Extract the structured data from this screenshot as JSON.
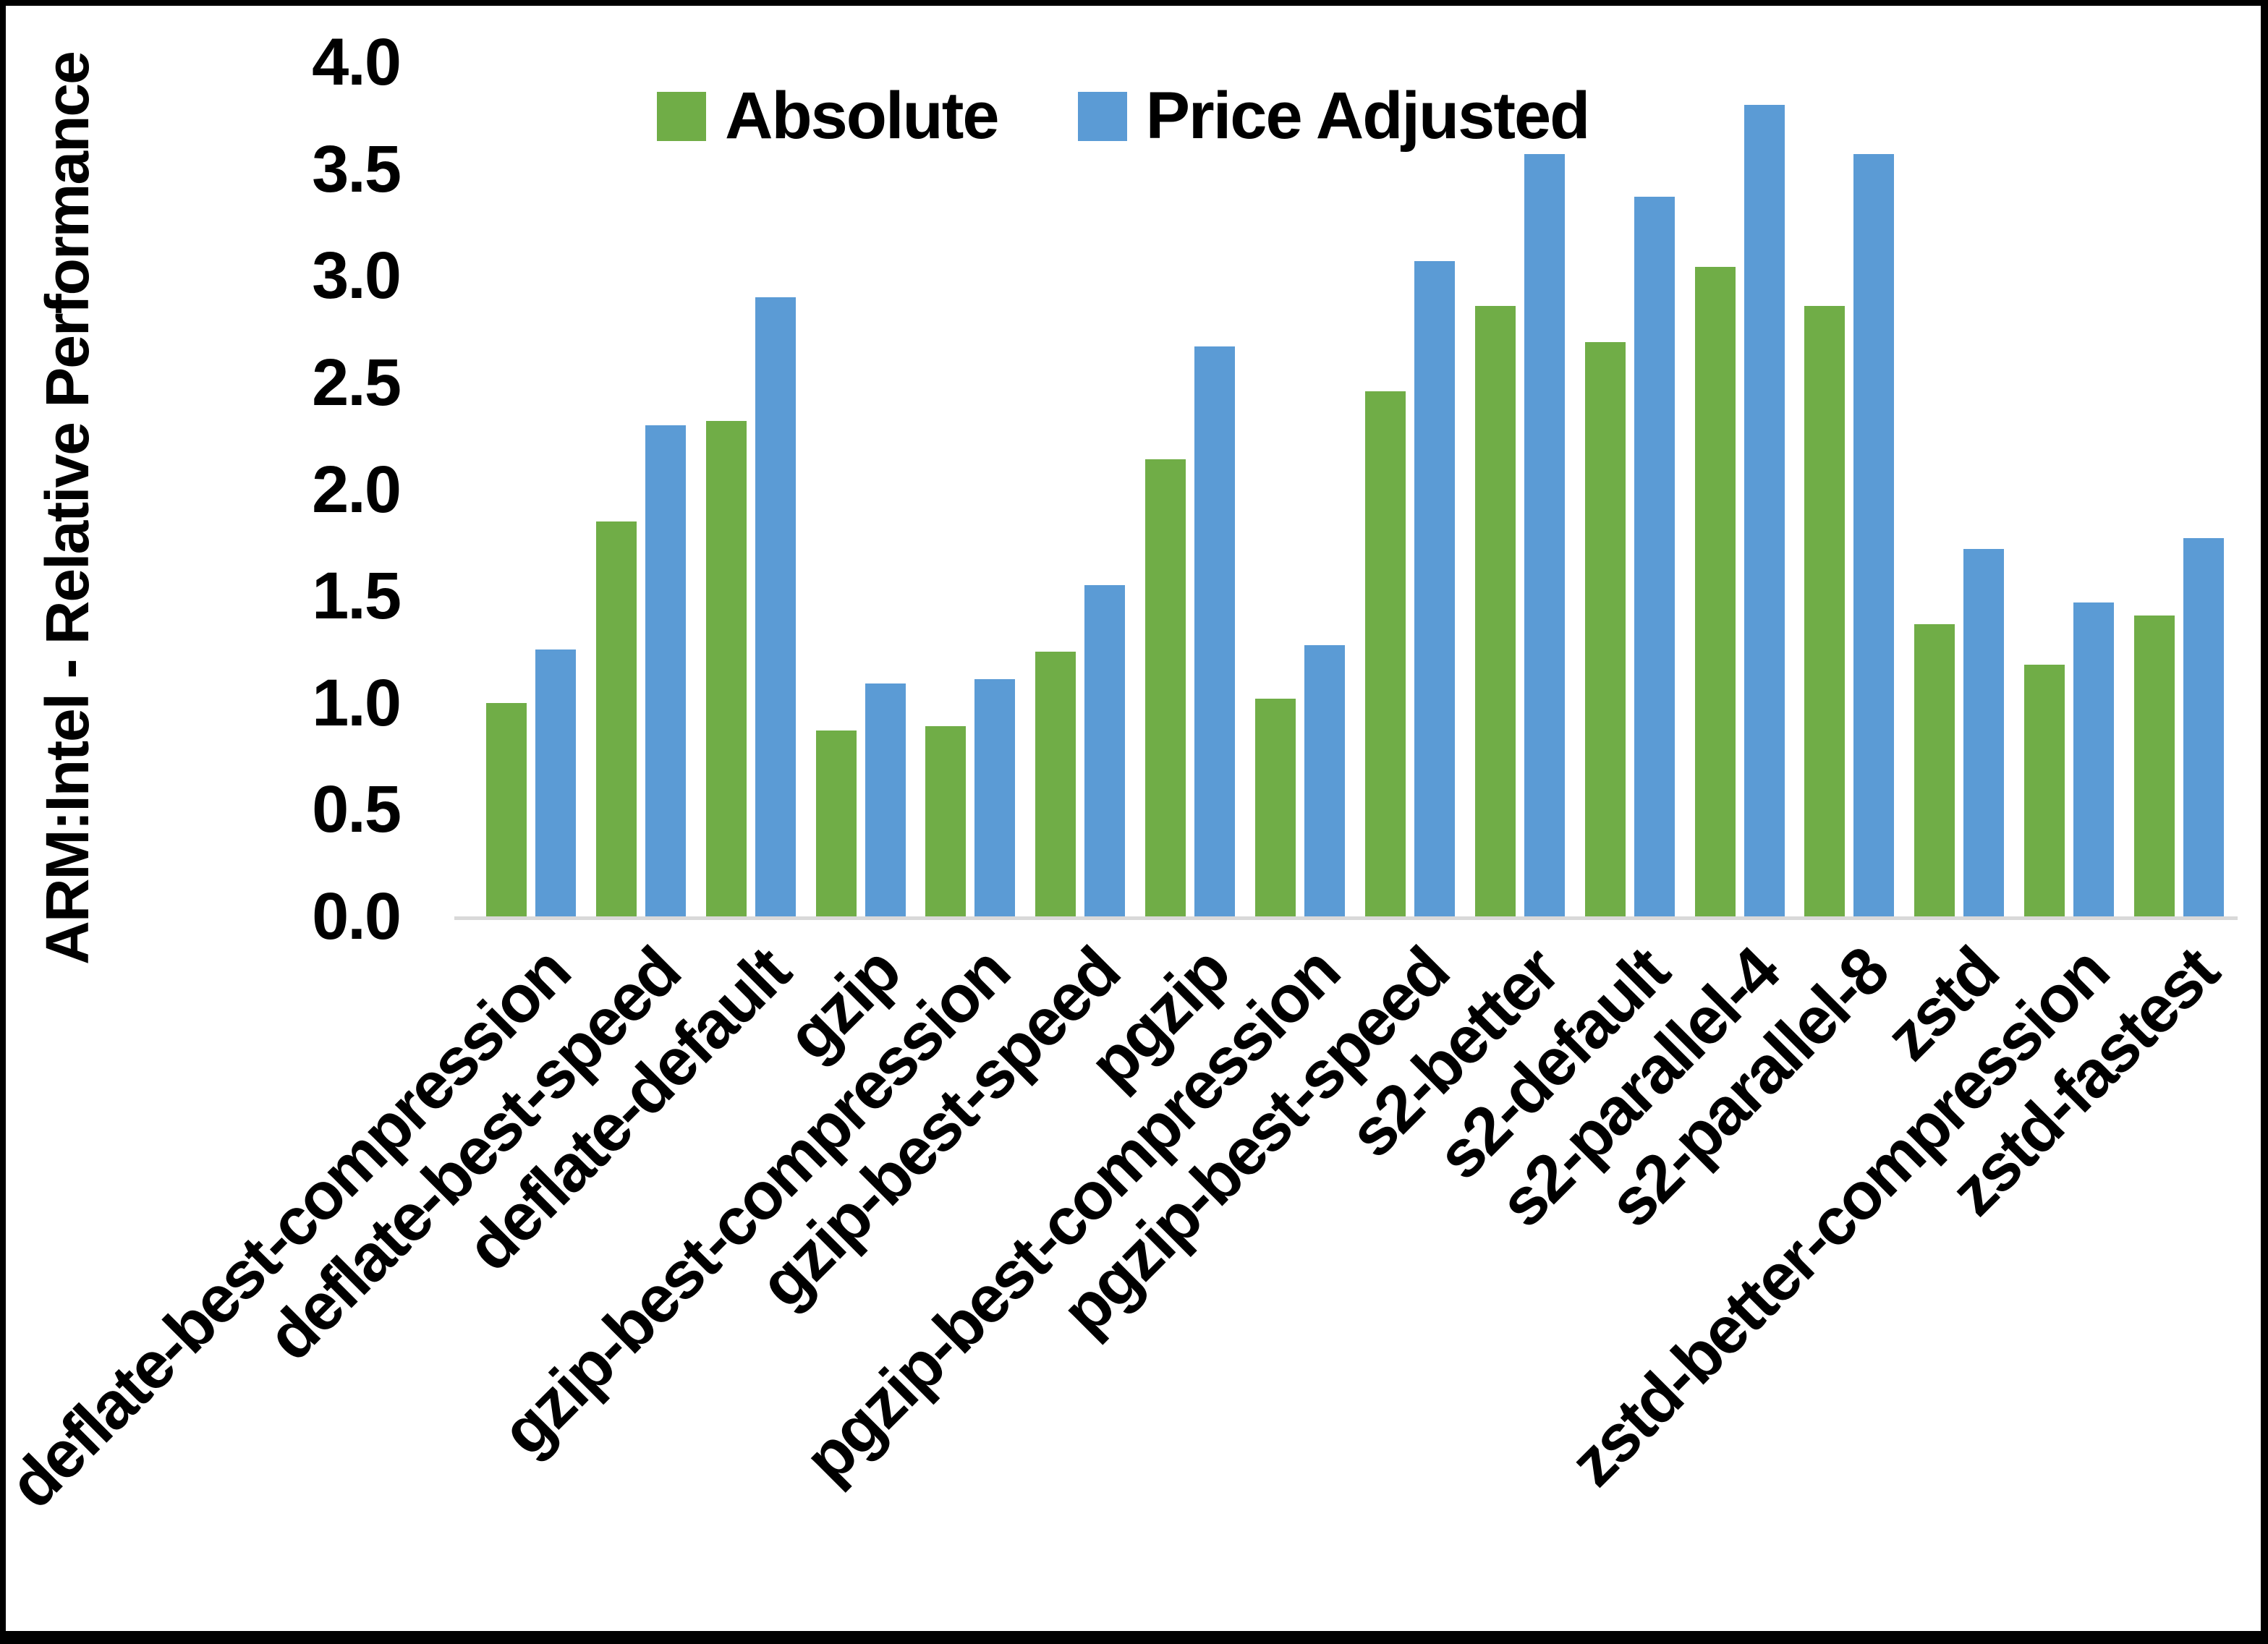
{
  "page": {
    "background": "#ffffff",
    "border_color": "#000000"
  },
  "chart_data": {
    "type": "bar",
    "title": "",
    "xlabel": "",
    "ylabel": "ARM:Intel - Relative Performance",
    "ylim": [
      0.0,
      4.0
    ],
    "ytick_interval": 0.5,
    "ytick_labels": [
      "0.0",
      "0.5",
      "1.0",
      "1.5",
      "2.0",
      "2.5",
      "3.0",
      "3.5",
      "4.0"
    ],
    "grid": false,
    "legend_position": "top-center",
    "axis_line_color": "#d9d9d9",
    "text_color": "#000000",
    "categories": [
      "deflate-best-compression",
      "deflate-best-speed",
      "deflate-default",
      "gzip",
      "gzip-best-compression",
      "gzip-best-speed",
      "pgzip",
      "pgzip-best-compression",
      "pgzip-best-speed",
      "s2-better",
      "s2-default",
      "s2-parallel-4",
      "s2-parallel-8",
      "zstd",
      "zstd-better-compression",
      "zstd-fastest"
    ],
    "series": [
      {
        "name": "Absolute",
        "color": "#70AD47",
        "values": [
          1.0,
          1.85,
          2.32,
          0.87,
          0.89,
          1.24,
          2.14,
          1.02,
          2.46,
          2.86,
          2.69,
          3.04,
          2.86,
          1.37,
          1.18,
          1.41
        ]
      },
      {
        "name": "Price Adjusted",
        "color": "#5B9BD5",
        "values": [
          1.25,
          2.3,
          2.9,
          1.09,
          1.11,
          1.55,
          2.67,
          1.27,
          3.07,
          3.57,
          3.37,
          3.8,
          3.57,
          1.72,
          1.47,
          1.77
        ]
      }
    ]
  }
}
